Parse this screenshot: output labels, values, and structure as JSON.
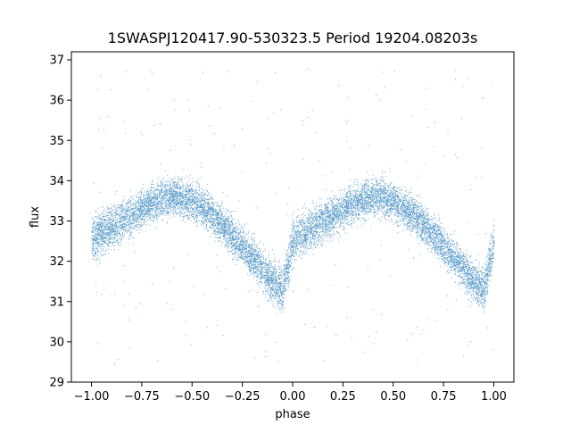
{
  "chart_data": {
    "type": "scatter",
    "title": "1SWASPJ120417.90-530323.5 Period 19204.08203s",
    "xlabel": "phase",
    "ylabel": "flux",
    "xlim": [
      -1.1,
      1.1
    ],
    "ylim": [
      29,
      37.2
    ],
    "xticks": [
      -1.0,
      -0.75,
      -0.5,
      -0.25,
      0.0,
      0.25,
      0.5,
      0.75,
      1.0
    ],
    "xtick_labels": [
      "−1.00",
      "−0.75",
      "−0.50",
      "−0.25",
      "0.00",
      "0.25",
      "0.50",
      "0.75",
      "1.00"
    ],
    "yticks": [
      29,
      30,
      31,
      32,
      33,
      34,
      35,
      36,
      37
    ],
    "ytick_labels": [
      "29",
      "30",
      "31",
      "32",
      "33",
      "34",
      "35",
      "36",
      "37"
    ],
    "grid": false,
    "legend": "none",
    "marker_color": "#1f77b4",
    "series": [
      {
        "x": [
          -1.0,
          -0.95,
          -0.9,
          -0.85,
          -0.8,
          -0.75,
          -0.7,
          -0.65,
          -0.6,
          -0.55,
          -0.5,
          -0.45,
          -0.4,
          -0.35,
          -0.3,
          -0.25,
          -0.2,
          -0.15,
          -0.1,
          -0.05,
          0.0,
          0.05,
          0.1,
          0.15,
          0.2,
          0.25,
          0.3,
          0.35,
          0.4,
          0.45,
          0.5,
          0.55,
          0.6,
          0.65,
          0.7,
          0.75,
          0.8,
          0.85,
          0.9,
          0.95,
          1.0
        ],
        "y": [
          32.6,
          32.7,
          32.85,
          33.0,
          33.15,
          33.3,
          33.45,
          33.55,
          33.6,
          33.6,
          33.5,
          33.35,
          33.15,
          32.9,
          32.65,
          32.4,
          32.1,
          31.8,
          31.5,
          31.3,
          32.5,
          32.7,
          32.85,
          33.0,
          33.15,
          33.3,
          33.45,
          33.55,
          33.6,
          33.6,
          33.5,
          33.35,
          33.15,
          32.9,
          32.65,
          32.4,
          32.1,
          31.8,
          31.5,
          31.3,
          32.5
        ],
        "spread": 0.55,
        "points_per_bin": 380
      }
    ],
    "outliers_count": 260
  }
}
